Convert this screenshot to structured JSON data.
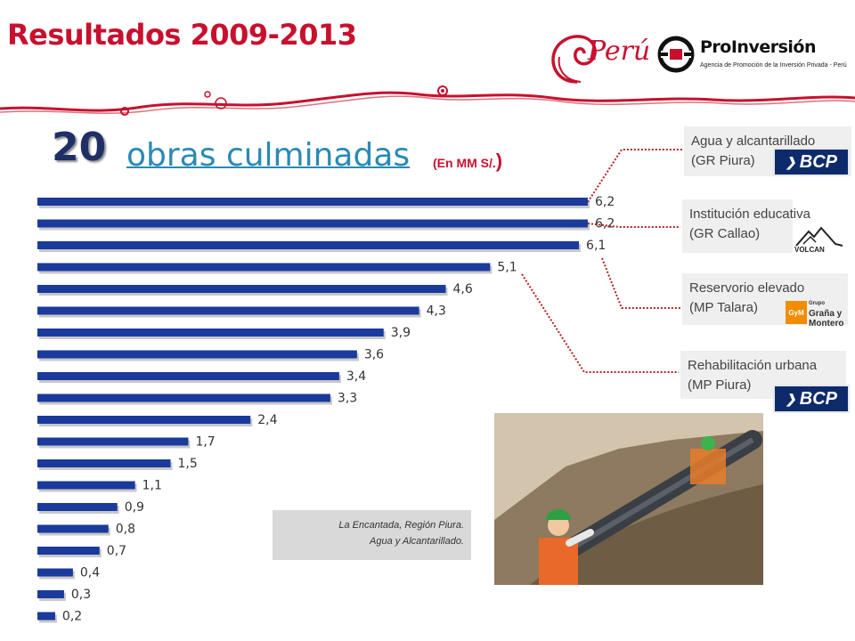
{
  "header": {
    "title": "Resultados 2009-2013",
    "peru_logo_text": "Perú",
    "proinversion_name": "ProInversión",
    "proinversion_tagline": "Agencia de Promoción de la Inversión Privada - Perú"
  },
  "headline": {
    "count": "20",
    "label": "obras culminadas",
    "unit_open": "(En MM S/.",
    "unit_close": ")"
  },
  "chart_data": {
    "type": "bar",
    "orientation": "horizontal",
    "values": [
      6.2,
      6.2,
      6.1,
      5.1,
      4.6,
      4.3,
      3.9,
      3.6,
      3.4,
      3.3,
      2.4,
      1.7,
      1.5,
      1.1,
      0.9,
      0.8,
      0.7,
      0.4,
      0.3,
      0.2
    ],
    "labels": [
      "6,2",
      "6,2",
      "6,1",
      "5,1",
      "4,6",
      "4,3",
      "3,9",
      "3,6",
      "3,4",
      "3,3",
      "2,4",
      "1,7",
      "1,5",
      "1,1",
      "0,9",
      "0,8",
      "0,7",
      "0,4",
      "0,3",
      "0,2"
    ],
    "bar_color": "#1a3a9c",
    "xlim": [
      0,
      6.2
    ]
  },
  "callouts": [
    {
      "line1": "Agua y alcantarillado",
      "line2": "(GR Piura)",
      "sponsor": "BCP"
    },
    {
      "line1": "Institución educativa",
      "line2": "(GR Callao)",
      "sponsor": "VOLCAN"
    },
    {
      "line1": "Reservorio elevado",
      "line2": "(MP Talara)",
      "sponsor": "Graña y Montero"
    },
    {
      "line1": "Rehabilitación urbana",
      "line2": "(MP Piura)",
      "sponsor": "BCP"
    }
  ],
  "sponsors": {
    "bcp": "BCP",
    "volcan": "VOLCAN",
    "gym_small": "Grupo",
    "gym_line1": "Graña y",
    "gym_line2": "Montero"
  },
  "caption": {
    "line1": "La Encantada, Región Piura.",
    "line2": "Agua y Alcantarillado."
  },
  "colors": {
    "brand_red": "#c8102e",
    "navy": "#1f2f66",
    "teal": "#2a8ab5",
    "connector": "#b22222"
  }
}
